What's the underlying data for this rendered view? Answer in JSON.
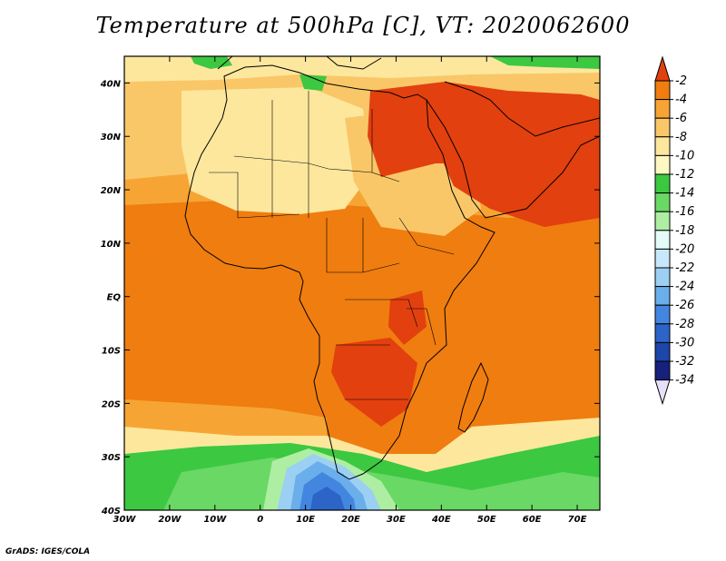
{
  "title": "Temperature at 500hPa [C], VT: 2020062600",
  "credit": "GrADS: IGES/COLA",
  "map": {
    "lat_labels": [
      "40N",
      "30N",
      "20N",
      "10N",
      "EQ",
      "10S",
      "20S",
      "30S",
      "40S"
    ],
    "lon_labels": [
      "30W",
      "20W",
      "10W",
      "0",
      "10E",
      "20E",
      "30E",
      "40E",
      "50E",
      "60E",
      "70E"
    ],
    "colors": {
      "m2": "#e2400f",
      "m4": "#f07d0f",
      "m6": "#f6a534",
      "m8": "#f9c768",
      "m10": "#fde79d",
      "m12": "#fdf7c2",
      "m14": "#3cc840",
      "m16": "#6ad865",
      "m18": "#aeeea3",
      "m22": "#9cd0f2",
      "m24": "#6aaeec",
      "m26": "#4386df",
      "m28": "#2c64c8"
    }
  },
  "colorbar": {
    "labels": [
      "-2",
      "-4",
      "-6",
      "-8",
      "-10",
      "-12",
      "-14",
      "-16",
      "-18",
      "-20",
      "-22",
      "-24",
      "-26",
      "-28",
      "-30",
      "-32",
      "-34"
    ],
    "colors": [
      "#e2400f",
      "#f07d0f",
      "#f6a534",
      "#f9c768",
      "#fde79d",
      "#fdf7c2",
      "#3cc840",
      "#6ad865",
      "#aeeea3",
      "#e4fbf7",
      "#c7e8fa",
      "#9cd0f2",
      "#6aaeec",
      "#4386df",
      "#2c64c8",
      "#1c46a8",
      "#17207a",
      "#e8e0f8"
    ]
  }
}
